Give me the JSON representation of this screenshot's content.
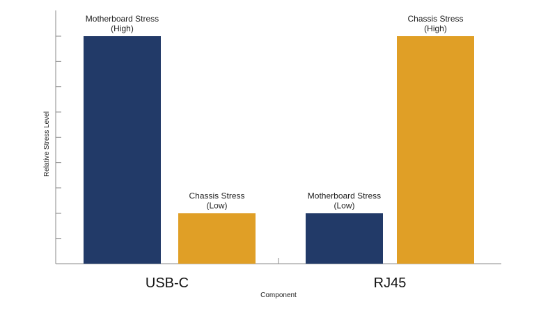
{
  "chart_data": {
    "type": "bar",
    "title": "",
    "xlabel": "Component",
    "ylabel": "Relative Stress Level",
    "categories": [
      "USB-C",
      "RJ45"
    ],
    "ylim": [
      0,
      9
    ],
    "grid": false,
    "legend": "none",
    "series": [
      {
        "color": "#223a68",
        "values": [
          9,
          2
        ],
        "labels": [
          [
            "Motherboard Stress",
            "(High)"
          ],
          [
            "Motherboard Stress",
            "(Low)"
          ]
        ]
      },
      {
        "color": "#e09f26",
        "values": [
          2,
          9
        ],
        "labels": [
          [
            "Chassis Stress",
            "(Low)"
          ],
          [
            "Chassis Stress",
            "(High)"
          ]
        ]
      }
    ]
  }
}
